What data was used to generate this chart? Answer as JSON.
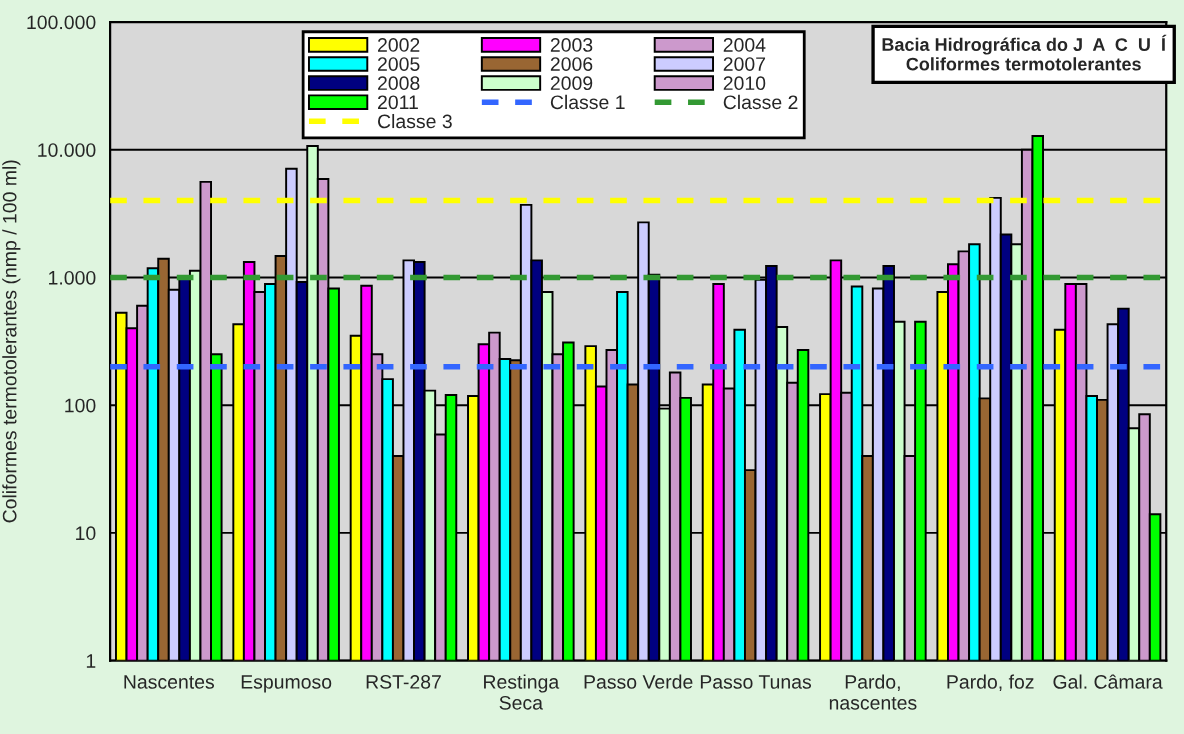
{
  "chart_data": {
    "type": "bar",
    "title": "Bacia Hidrográfica do J  A  C  U  Í\nColiformes termotolerantes",
    "ylabel": "Coliformes termotolerantes (nmp / 100 ml)",
    "categories": [
      "Nascentes",
      "Espumoso",
      "RST-287",
      "Restinga\nSeca",
      "Passo Verde",
      "Passo Tunas",
      "Pardo,\nnascentes",
      "Pardo, foz",
      "Gal. Câmara"
    ],
    "log": true,
    "ylim": [
      1,
      100000
    ],
    "yticks": [
      {
        "value": 1,
        "label": "1"
      },
      {
        "value": 10,
        "label": "10"
      },
      {
        "value": 100,
        "label": "100"
      },
      {
        "value": 1000,
        "label": "1.000"
      },
      {
        "value": 10000,
        "label": "10.000"
      },
      {
        "value": 100000,
        "label": "100.000"
      }
    ],
    "grid": "y",
    "legend": "top",
    "series": [
      {
        "name": "2002",
        "color": "#ffff00",
        "values": [
          530,
          430,
          350,
          118,
          290,
          145,
          122,
          770,
          390
        ]
      },
      {
        "name": "2003",
        "color": "#ff00ff",
        "values": [
          400,
          1320,
          860,
          300,
          140,
          890,
          1360,
          1270,
          890
        ]
      },
      {
        "name": "2004",
        "color": "#cc99cc",
        "values": [
          600,
          770,
          250,
          370,
          270,
          135,
          125,
          1600,
          890
        ]
      },
      {
        "name": "2005",
        "color": "#00ffff",
        "values": [
          1180,
          890,
          160,
          230,
          770,
          390,
          850,
          1820,
          118
        ]
      },
      {
        "name": "2006",
        "color": "#996633",
        "values": [
          1400,
          1470,
          40,
          225,
          145,
          31,
          40,
          113,
          110
        ]
      },
      {
        "name": "2007",
        "color": "#ccccff",
        "values": [
          800,
          7100,
          1360,
          3700,
          2700,
          960,
          820,
          4200,
          430
        ]
      },
      {
        "name": "2008",
        "color": "#000080",
        "values": [
          1000,
          920,
          1320,
          1360,
          1050,
          1230,
          1230,
          2170,
          570
        ]
      },
      {
        "name": "2009",
        "color": "#ccffcc",
        "values": [
          1130,
          10700,
          130,
          770,
          94,
          410,
          450,
          1820,
          66
        ]
      },
      {
        "name": "2010",
        "color": "#cc99cc",
        "values": [
          5600,
          5900,
          59,
          250,
          180,
          150,
          40,
          10000,
          85
        ]
      },
      {
        "name": "2011",
        "color": "#00ff00",
        "values": [
          250,
          820,
          120,
          310,
          114,
          270,
          450,
          12800,
          14
        ]
      }
    ],
    "ref_lines": [
      {
        "axis": "y",
        "value": 200,
        "label": "Classe 1",
        "color": "#3366ff",
        "line_style": "dashed"
      },
      {
        "axis": "y",
        "value": 1000,
        "label": "Classe 2",
        "color": "#339933",
        "line_style": "dashed"
      },
      {
        "axis": "y",
        "value": 4000,
        "label": "Classe 3",
        "color": "#ffff00",
        "line_style": "dashed"
      }
    ]
  }
}
